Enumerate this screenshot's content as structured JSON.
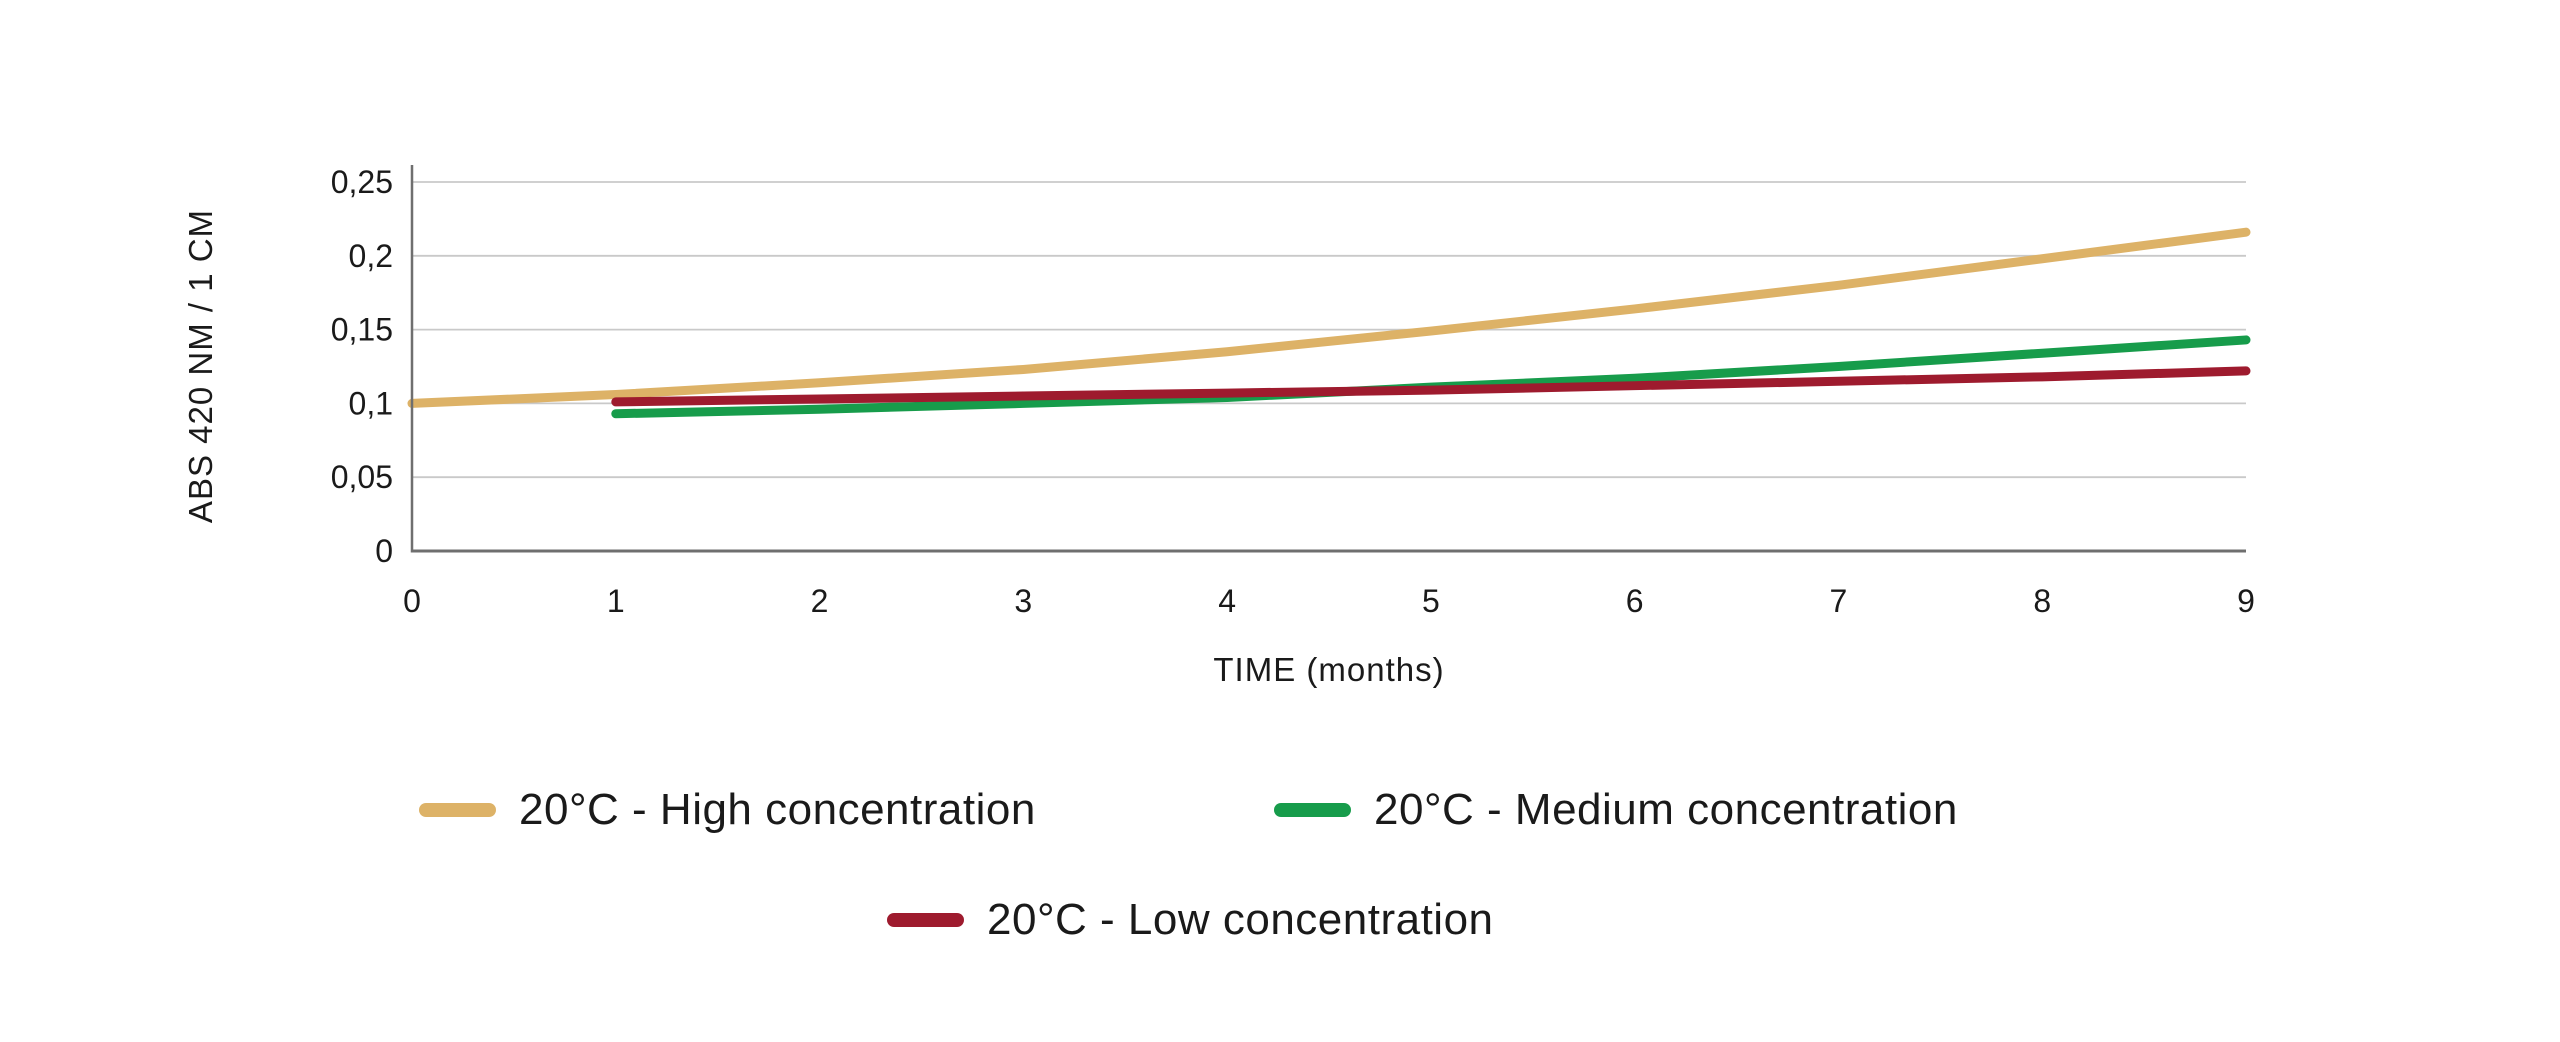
{
  "chart_data": {
    "type": "line",
    "title": "",
    "xlabel": "TIME (months)",
    "ylabel": "ABS 420 NM / 1 CM",
    "xlim": [
      0,
      9
    ],
    "ylim": [
      0,
      0.25
    ],
    "x_tick_labels": [
      "0",
      "1",
      "2",
      "3",
      "4",
      "5",
      "6",
      "7",
      "8",
      "9"
    ],
    "x_tick_values": [
      0,
      1,
      2,
      3,
      4,
      5,
      6,
      7,
      8,
      9
    ],
    "y_tick_labels": [
      "0",
      "0,05",
      "0,1",
      "0,15",
      "0,2",
      "0,25"
    ],
    "y_tick_values": [
      0,
      0.05,
      0.1,
      0.15,
      0.2,
      0.25
    ],
    "grid": "horizontal-gridlines-on",
    "legend_position": "bottom",
    "decimal_separator": "comma",
    "series": [
      {
        "name": "20°C - High concentration",
        "color": "#DDB267",
        "x": [
          0,
          1,
          2,
          3,
          4,
          5,
          6,
          7,
          8,
          9
        ],
        "values": [
          0.1,
          0.106,
          0.114,
          0.123,
          0.135,
          0.149,
          0.164,
          0.18,
          0.198,
          0.216
        ]
      },
      {
        "name": "20°C - Medium concentration",
        "color": "#179C4B",
        "x": [
          1,
          2,
          3,
          4,
          5,
          6,
          7,
          8,
          9
        ],
        "values": [
          0.093,
          0.096,
          0.1,
          0.104,
          0.111,
          0.117,
          0.125,
          0.134,
          0.143
        ]
      },
      {
        "name": "20°C - Low concentration",
        "color": "#9E1B2E",
        "x": [
          1,
          2,
          3,
          4,
          5,
          6,
          7,
          8,
          9
        ],
        "values": [
          0.101,
          0.103,
          0.105,
          0.107,
          0.109,
          0.112,
          0.115,
          0.118,
          0.122
        ]
      }
    ],
    "colors": {
      "gridline": "#C9C9C9",
      "axis": "#6F6F6F",
      "text": "#1A1A1A",
      "background": "#FFFFFF"
    }
  }
}
